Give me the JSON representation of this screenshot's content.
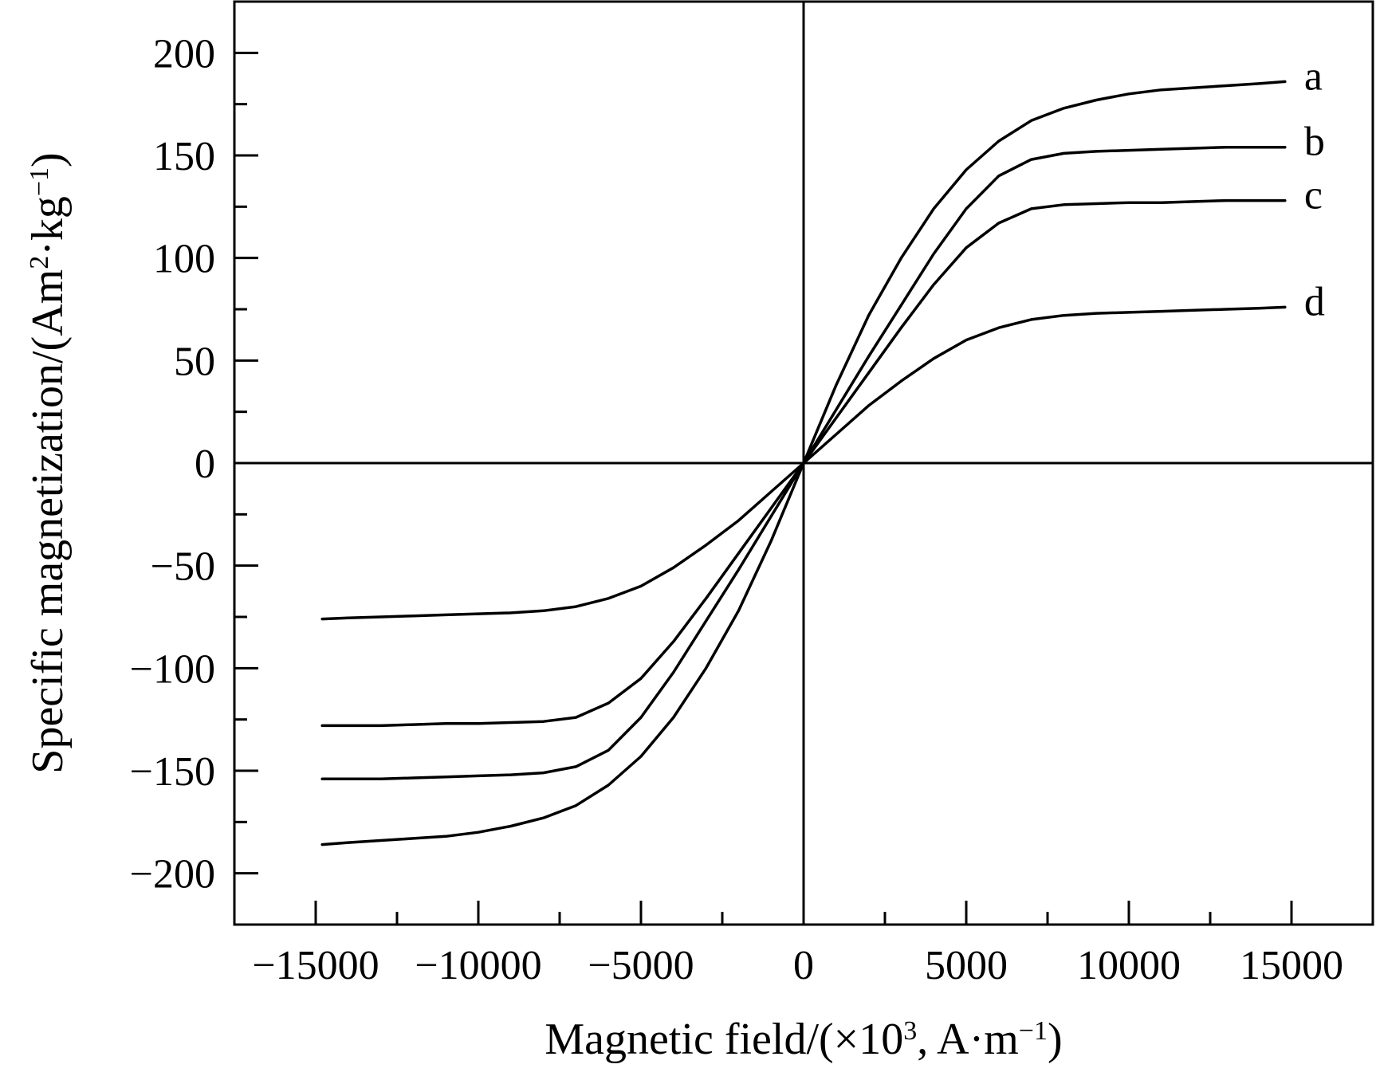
{
  "chart_data": {
    "type": "line",
    "title": "",
    "xlabel": {
      "main": "Magnetic field/(×10",
      "sup1": "3",
      "mid": ", A·m",
      "sup2": "−1",
      "end": ")"
    },
    "ylabel": {
      "main": "Specific magnetization/(Am",
      "sup1": "2",
      "mid": "·kg",
      "sup2": "−1",
      "end": ")"
    },
    "xlim": [
      -17500,
      17500
    ],
    "ylim": [
      -225,
      225
    ],
    "xticks": [
      -15000,
      -10000,
      -5000,
      0,
      5000,
      10000,
      15000
    ],
    "xtick_labels": [
      "−15000",
      "−10000",
      "−5000",
      "0",
      "5000",
      "10000",
      "15000"
    ],
    "xminor_step": 2500,
    "yticks": [
      -200,
      -150,
      -100,
      -50,
      0,
      50,
      100,
      150,
      200
    ],
    "ytick_labels": [
      "−200",
      "−150",
      "−100",
      "−50",
      "0",
      "50",
      "100",
      "150",
      "200"
    ],
    "yminor_step": 25,
    "grid": false,
    "legend": "inline labels at right end of curves",
    "x": [
      0,
      1000,
      2000,
      3000,
      4000,
      5000,
      6000,
      7000,
      8000,
      9000,
      10000,
      11000,
      12000,
      13000,
      14000,
      14800
    ],
    "series": [
      {
        "name": "a",
        "values": [
          0,
          38,
          72,
          100,
          124,
          143,
          157,
          167,
          173,
          177,
          180,
          182,
          183,
          184,
          185,
          186
        ]
      },
      {
        "name": "b",
        "values": [
          0,
          26,
          52,
          77,
          102,
          124,
          140,
          148,
          151,
          152,
          152.5,
          153,
          153.5,
          154,
          154,
          154
        ]
      },
      {
        "name": "c",
        "values": [
          0,
          22,
          44,
          66,
          87,
          105,
          117,
          124,
          126,
          126.5,
          127,
          127,
          127.5,
          128,
          128,
          128
        ]
      },
      {
        "name": "d",
        "values": [
          0,
          14,
          28,
          40,
          51,
          60,
          66,
          70,
          72,
          73,
          73.5,
          74,
          74.5,
          75,
          75.5,
          76
        ]
      }
    ]
  }
}
